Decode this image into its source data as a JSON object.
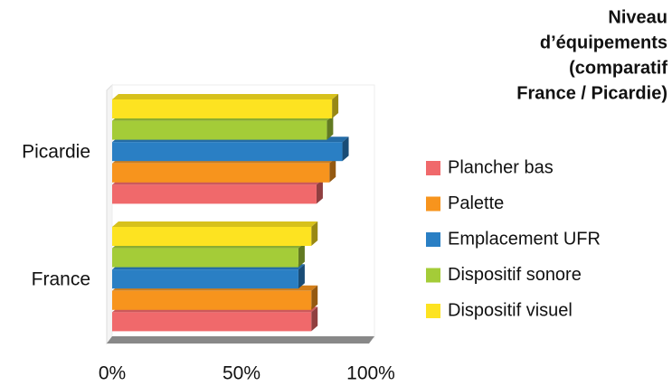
{
  "chart_data": {
    "type": "bar",
    "orientation": "horizontal",
    "title": [
      "Niveau",
      "d’équipements",
      "(comparatif",
      "France / Picardie)"
    ],
    "categories": [
      "Picardie",
      "France"
    ],
    "series": [
      {
        "name": "Plancher bas",
        "color": "#f0696b",
        "values": [
          79,
          77
        ]
      },
      {
        "name": "Palette",
        "color": "#f7941d",
        "values": [
          84,
          77
        ]
      },
      {
        "name": "Emplacement UFR",
        "color": "#2a7fc4",
        "values": [
          89,
          72
        ]
      },
      {
        "name": "Dispositif sonore",
        "color": "#a4cc38",
        "values": [
          83,
          72
        ]
      },
      {
        "name": "Dispositif visuel",
        "color": "#fde321",
        "values": [
          85,
          77
        ]
      }
    ],
    "xlim": [
      0,
      100
    ],
    "xticks": [
      {
        "value": 0,
        "label": "0%"
      },
      {
        "value": 50,
        "label": "50%"
      },
      {
        "value": 100,
        "label": "100%"
      }
    ],
    "legend": "right"
  }
}
